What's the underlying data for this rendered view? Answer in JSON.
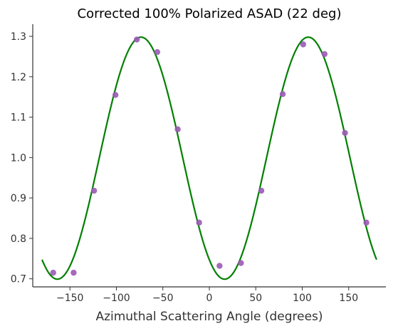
{
  "chart_data": {
    "type": "scatter",
    "title": "Corrected 100% Polarized ASAD (22 deg)",
    "xlabel": "Azimuthal Scattering Angle (degrees)",
    "ylabel": "",
    "xlim": [
      -190,
      190
    ],
    "ylim": [
      0.68,
      1.33
    ],
    "xticks": [
      -150,
      -100,
      -50,
      0,
      50,
      100,
      150
    ],
    "yticks": [
      0.7,
      0.8,
      0.9,
      1.0,
      1.1,
      1.2,
      1.3
    ],
    "xtick_labels": [
      "−150",
      "−100",
      "−50",
      "0",
      "50",
      "100",
      "150"
    ],
    "ytick_labels": [
      "0.7",
      "0.8",
      "0.9",
      "1.0",
      "1.1",
      "1.2",
      "1.3"
    ],
    "grid": false,
    "series": [
      {
        "kind": "scatter",
        "color": "#9b59b6",
        "points": [
          {
            "x": -168,
            "y": 0.715
          },
          {
            "x": -146,
            "y": 0.715
          },
          {
            "x": -124,
            "y": 0.918
          },
          {
            "x": -101,
            "y": 1.155
          },
          {
            "x": -78,
            "y": 1.292
          },
          {
            "x": -56,
            "y": 1.261
          },
          {
            "x": -34,
            "y": 1.07
          },
          {
            "x": -11,
            "y": 0.839
          },
          {
            "x": 11,
            "y": 0.732
          },
          {
            "x": 34,
            "y": 0.739
          },
          {
            "x": 56,
            "y": 0.918
          },
          {
            "x": 79,
            "y": 1.157
          },
          {
            "x": 101,
            "y": 1.28
          },
          {
            "x": 124,
            "y": 1.256
          },
          {
            "x": 146,
            "y": 1.061
          },
          {
            "x": 169,
            "y": 0.839
          }
        ]
      },
      {
        "kind": "line",
        "color": "#008000",
        "fit": {
          "function": "offset + amplitude * cos(2*(x - phase_deg))",
          "offset": 0.9985,
          "amplitude": 0.2995,
          "phase_deg": -73.5,
          "x_range": [
            -180,
            180
          ]
        }
      }
    ]
  }
}
